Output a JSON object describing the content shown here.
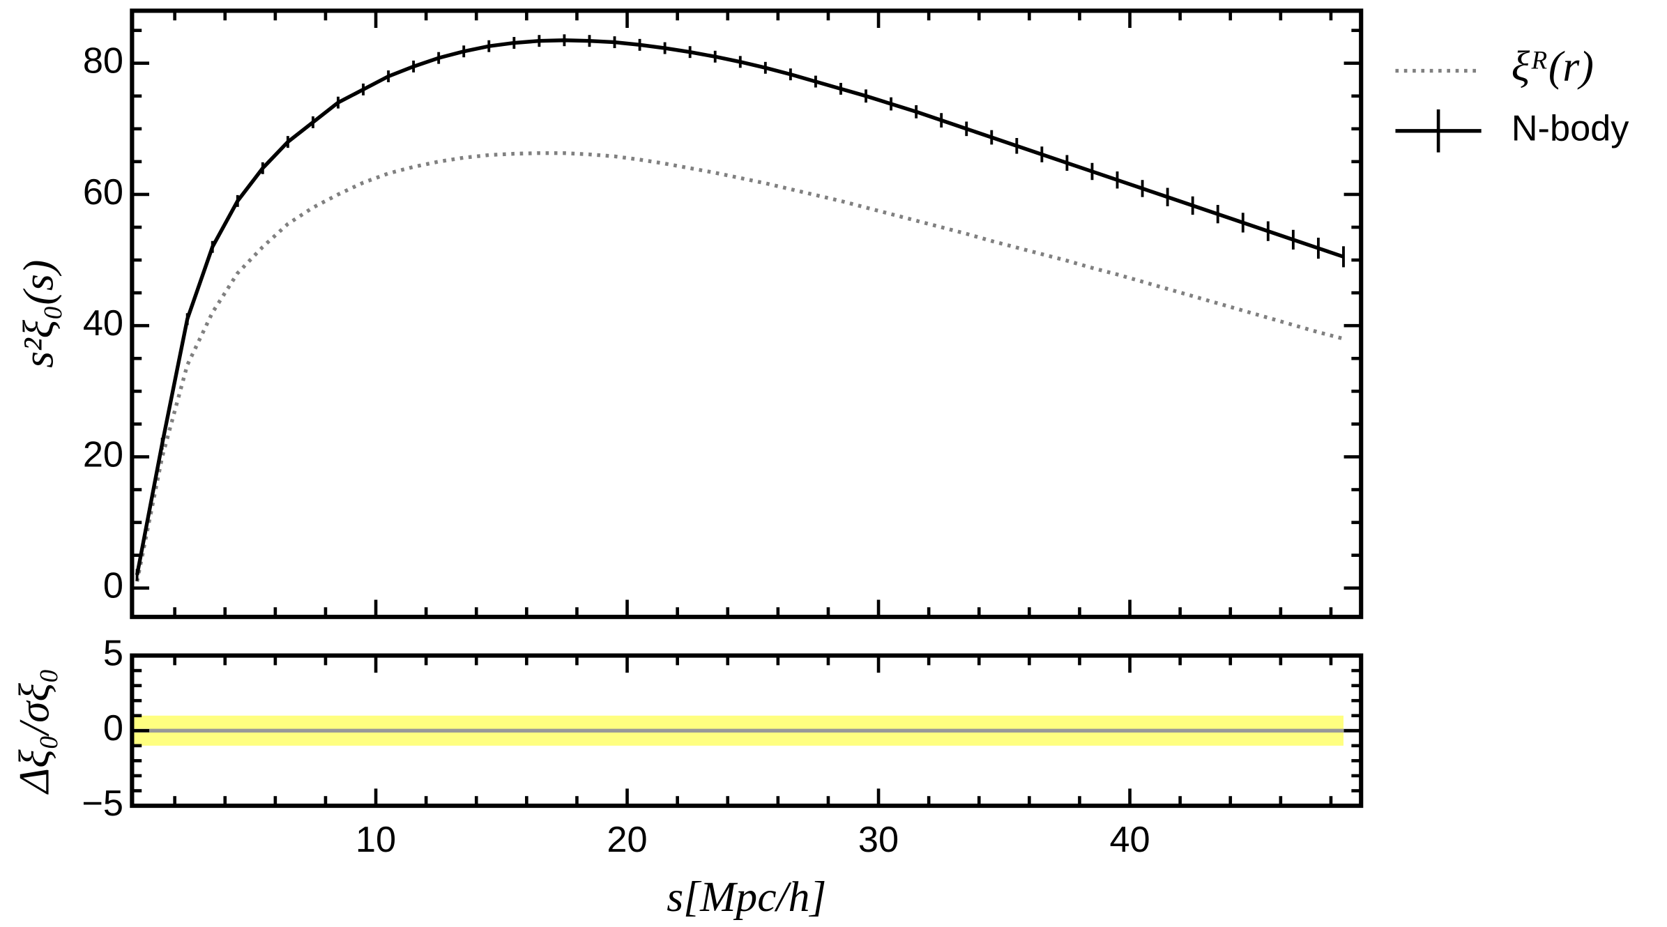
{
  "chart_data": [
    {
      "type": "line",
      "ylabel": "s²ξ₀(s)",
      "x": [
        0.5,
        1.5,
        2.5,
        3.5,
        4.5,
        5.5,
        6.5,
        7.5,
        8.5,
        9.5,
        10.5,
        11.5,
        12.5,
        13.5,
        14.5,
        15.5,
        16.5,
        17.5,
        18.5,
        19.5,
        20.5,
        21.5,
        22.5,
        23.5,
        24.5,
        25.5,
        26.5,
        27.5,
        28.5,
        29.5,
        30.5,
        31.5,
        32.5,
        33.5,
        34.5,
        35.5,
        36.5,
        37.5,
        38.5,
        39.5,
        40.5,
        41.5,
        42.5,
        43.5,
        44.5,
        45.5,
        46.5,
        47.5,
        48.5
      ],
      "series": [
        {
          "name": "ξᴿ(r)",
          "color": "#808080",
          "style": "dotted",
          "values": [
            1,
            20,
            34,
            42,
            48,
            52,
            55.5,
            58,
            60,
            61.8,
            63.2,
            64.2,
            65,
            65.6,
            66,
            66.2,
            66.3,
            66.3,
            66.1,
            65.8,
            65.3,
            64.7,
            64,
            63.3,
            62.5,
            61.7,
            60.8,
            59.9,
            59,
            58,
            57,
            56,
            55,
            54,
            52.9,
            51.9,
            50.9,
            49.9,
            48.8,
            47.8,
            46.7,
            45.6,
            44.5,
            43.4,
            42.3,
            41.2,
            40.1,
            39,
            38
          ]
        },
        {
          "name": "N-body",
          "color": "#000000",
          "style": "solid",
          "values": [
            2,
            22,
            41,
            52,
            59,
            64,
            68,
            71,
            74,
            76,
            78,
            79.5,
            80.8,
            81.8,
            82.6,
            83.1,
            83.4,
            83.5,
            83.4,
            83.2,
            82.8,
            82.3,
            81.7,
            81,
            80.2,
            79.3,
            78.3,
            77.2,
            76.1,
            75,
            73.8,
            72.6,
            71.3,
            70,
            68.7,
            67.4,
            66.1,
            64.8,
            63.5,
            62.2,
            60.9,
            59.6,
            58.3,
            57,
            55.7,
            54.4,
            53.1,
            51.8,
            50.5
          ],
          "errors": [
            0.3,
            0.3,
            0.3,
            0.3,
            0.3,
            0.3,
            0.3,
            0.3,
            0.3,
            0.3,
            0.4,
            0.4,
            0.4,
            0.4,
            0.5,
            0.5,
            0.5,
            0.6,
            0.6,
            0.6,
            0.7,
            0.7,
            0.7,
            0.8,
            0.8,
            0.8,
            0.9,
            0.9,
            0.9,
            1,
            1,
            1,
            1.1,
            1.1,
            1.1,
            1.2,
            1.2,
            1.2,
            1.3,
            1.3,
            1.3,
            1.4,
            1.4,
            1.4,
            1.5,
            1.5,
            1.5,
            1.6,
            1.6
          ]
        }
      ],
      "xlim": [
        0.3,
        49.2
      ],
      "ylim": [
        -4.4,
        88
      ],
      "xticks": [
        10,
        20,
        30,
        40
      ],
      "xminorticks": [
        2,
        4,
        6,
        8,
        12,
        14,
        16,
        18,
        22,
        24,
        26,
        28,
        32,
        34,
        36,
        38,
        42,
        44,
        46,
        48
      ],
      "yticks": [
        0,
        20,
        40,
        60,
        80
      ],
      "yminorticks": [
        5,
        10,
        15,
        25,
        30,
        35,
        45,
        50,
        55,
        65,
        70,
        75,
        85
      ],
      "legend": "outside right"
    },
    {
      "type": "band",
      "ylabel": "Δξ₀/σξ₀",
      "xlabel": "s[Mpc/h]",
      "band": {
        "x": [
          0.3,
          48.5
        ],
        "y": [
          -1,
          1
        ],
        "color": "#ffff80"
      },
      "hline": {
        "y": 0,
        "color": "#999999"
      },
      "xlim": [
        0.3,
        49.2
      ],
      "ylim": [
        -5,
        5
      ],
      "xticks": [
        10,
        20,
        30,
        40
      ],
      "xminorticks": [
        2,
        4,
        6,
        8,
        12,
        14,
        16,
        18,
        22,
        24,
        26,
        28,
        32,
        34,
        36,
        38,
        42,
        44,
        46,
        48
      ],
      "yticks": [
        {
          "value": -5,
          "label": "−5"
        },
        0,
        5
      ],
      "yminorticks": [
        -4,
        -3,
        -2,
        -1,
        1,
        2,
        3,
        4
      ]
    }
  ]
}
